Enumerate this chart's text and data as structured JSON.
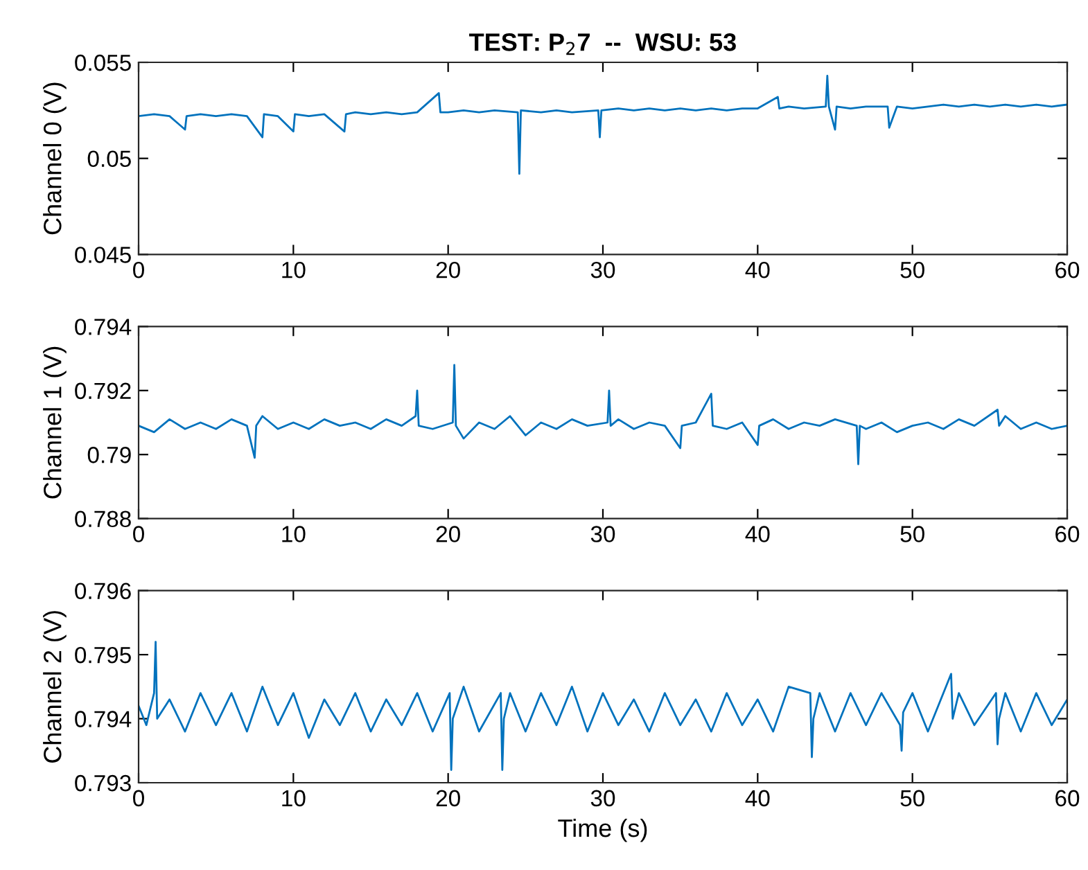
{
  "chart_data": [
    {
      "type": "line",
      "title": "TEST: P$_{2}$7  --  WSU: 53",
      "ylabel": "Channel 0 (V)",
      "xlim": [
        0,
        60
      ],
      "xticks": [
        0,
        10,
        20,
        30,
        40,
        50,
        60
      ],
      "ylim": [
        0.045,
        0.055
      ],
      "yticks": [
        0.045,
        0.05,
        0.055
      ],
      "series": [
        {
          "color": "#0072bd",
          "x": [
            0,
            1,
            2,
            3,
            3.1,
            4,
            5,
            6,
            7,
            8,
            8.1,
            9,
            10,
            10.1,
            11,
            12,
            13.3,
            13.4,
            14,
            15,
            16,
            17,
            18,
            19.4,
            19.5,
            20,
            21,
            22,
            23,
            24.5,
            24.6,
            24.7,
            26,
            27,
            28,
            29.7,
            29.8,
            29.9,
            31,
            32,
            33,
            34,
            35,
            36,
            37,
            38,
            39,
            40,
            41.3,
            41.4,
            42,
            43,
            44.4,
            44.5,
            44.6,
            45,
            45.1,
            46,
            47,
            48.4,
            48.5,
            49,
            50,
            51,
            52,
            53,
            54,
            55,
            56,
            57,
            58,
            59,
            60
          ],
          "values": [
            0.0522,
            0.0523,
            0.0522,
            0.0515,
            0.0522,
            0.0523,
            0.0522,
            0.0523,
            0.0522,
            0.0511,
            0.0523,
            0.0522,
            0.0514,
            0.0523,
            0.0522,
            0.0523,
            0.0514,
            0.0523,
            0.0524,
            0.0523,
            0.0524,
            0.0523,
            0.0524,
            0.0534,
            0.0524,
            0.0524,
            0.0525,
            0.0524,
            0.0525,
            0.0524,
            0.0492,
            0.0525,
            0.0524,
            0.0525,
            0.0524,
            0.0525,
            0.0511,
            0.0525,
            0.0526,
            0.0525,
            0.0526,
            0.0525,
            0.0526,
            0.0525,
            0.0526,
            0.0525,
            0.0526,
            0.0526,
            0.0532,
            0.0526,
            0.0527,
            0.0526,
            0.0527,
            0.0543,
            0.0527,
            0.0515,
            0.0527,
            0.0526,
            0.0527,
            0.0527,
            0.0516,
            0.0527,
            0.0526,
            0.0527,
            0.0528,
            0.0527,
            0.0528,
            0.0527,
            0.0528,
            0.0527,
            0.0528,
            0.0527,
            0.0528
          ]
        }
      ]
    },
    {
      "type": "line",
      "ylabel": "Channel 1 (V)",
      "xlim": [
        0,
        60
      ],
      "xticks": [
        0,
        10,
        20,
        30,
        40,
        50,
        60
      ],
      "ylim": [
        0.788,
        0.794
      ],
      "yticks": [
        0.788,
        0.79,
        0.792,
        0.794
      ],
      "series": [
        {
          "color": "#0072bd",
          "x": [
            0,
            1,
            2,
            3,
            4,
            5,
            6,
            7,
            7.5,
            7.6,
            8,
            9,
            10,
            11,
            12,
            13,
            14,
            15,
            16,
            17,
            17.9,
            18,
            18.1,
            19,
            20.3,
            20.4,
            20.5,
            21,
            22,
            23,
            24,
            25,
            26,
            27,
            28,
            29,
            30.3,
            30.4,
            30.5,
            31,
            32,
            33,
            34,
            35,
            35.1,
            36,
            37,
            37.1,
            38,
            39,
            40,
            40.1,
            41,
            42,
            43,
            44,
            45,
            46.4,
            46.5,
            46.6,
            47,
            48,
            49,
            50,
            51,
            52,
            53,
            54,
            55.5,
            55.6,
            56,
            57,
            58,
            59,
            60
          ],
          "values": [
            0.7909,
            0.7907,
            0.7911,
            0.7908,
            0.791,
            0.7908,
            0.7911,
            0.7909,
            0.7899,
            0.7909,
            0.7912,
            0.7908,
            0.791,
            0.7908,
            0.7911,
            0.7909,
            0.791,
            0.7908,
            0.7911,
            0.7909,
            0.7912,
            0.792,
            0.7909,
            0.7908,
            0.791,
            0.7928,
            0.7909,
            0.7905,
            0.791,
            0.7908,
            0.7912,
            0.7906,
            0.791,
            0.7908,
            0.7911,
            0.7909,
            0.791,
            0.792,
            0.7909,
            0.7911,
            0.7908,
            0.791,
            0.7909,
            0.7902,
            0.7909,
            0.791,
            0.7919,
            0.7909,
            0.7908,
            0.791,
            0.7903,
            0.7909,
            0.7911,
            0.7908,
            0.791,
            0.7909,
            0.7911,
            0.7909,
            0.7897,
            0.7909,
            0.7908,
            0.791,
            0.7907,
            0.7909,
            0.791,
            0.7908,
            0.7911,
            0.7909,
            0.7914,
            0.7909,
            0.7912,
            0.7908,
            0.791,
            0.7908,
            0.7909
          ]
        }
      ]
    },
    {
      "type": "line",
      "xlabel": "Time (s)",
      "ylabel": "Channel 2 (V)",
      "xlim": [
        0,
        60
      ],
      "xticks": [
        0,
        10,
        20,
        30,
        40,
        50,
        60
      ],
      "ylim": [
        0.793,
        0.796
      ],
      "yticks": [
        0.793,
        0.794,
        0.795,
        0.796
      ],
      "series": [
        {
          "color": "#0072bd",
          "x": [
            0,
            0.5,
            1,
            1.1,
            1.2,
            2,
            3,
            4,
            5,
            6,
            7,
            8,
            9,
            10,
            11,
            12,
            13,
            14,
            15,
            16,
            17,
            18,
            19,
            20.1,
            20.2,
            20.3,
            21,
            22,
            23.4,
            23.5,
            23.6,
            24,
            25,
            26,
            27,
            28,
            29,
            30,
            31,
            32,
            33,
            34,
            35,
            36,
            37,
            38,
            39,
            40,
            41,
            42,
            43.4,
            43.5,
            43.6,
            44,
            45,
            46,
            47,
            48,
            49.2,
            49.3,
            49.4,
            50,
            51,
            52.5,
            52.6,
            53,
            54,
            55.4,
            55.5,
            55.6,
            56,
            57,
            58,
            59,
            60
          ],
          "values": [
            0.7942,
            0.7939,
            0.7944,
            0.7952,
            0.794,
            0.7943,
            0.7938,
            0.7944,
            0.7939,
            0.7944,
            0.7938,
            0.7945,
            0.7939,
            0.7944,
            0.7937,
            0.7943,
            0.7939,
            0.7944,
            0.7938,
            0.7943,
            0.7939,
            0.7944,
            0.7938,
            0.7944,
            0.7932,
            0.794,
            0.7945,
            0.7938,
            0.7944,
            0.7932,
            0.794,
            0.7944,
            0.7938,
            0.7944,
            0.7939,
            0.7945,
            0.7938,
            0.7944,
            0.7939,
            0.7943,
            0.7938,
            0.7944,
            0.7939,
            0.7943,
            0.7938,
            0.7944,
            0.7939,
            0.7943,
            0.7938,
            0.7945,
            0.7944,
            0.7934,
            0.794,
            0.7944,
            0.7938,
            0.7944,
            0.7939,
            0.7944,
            0.7939,
            0.7935,
            0.7941,
            0.7944,
            0.7938,
            0.7947,
            0.794,
            0.7944,
            0.7939,
            0.7944,
            0.7936,
            0.794,
            0.7944,
            0.7938,
            0.7944,
            0.7939,
            0.7943
          ]
        }
      ]
    }
  ]
}
